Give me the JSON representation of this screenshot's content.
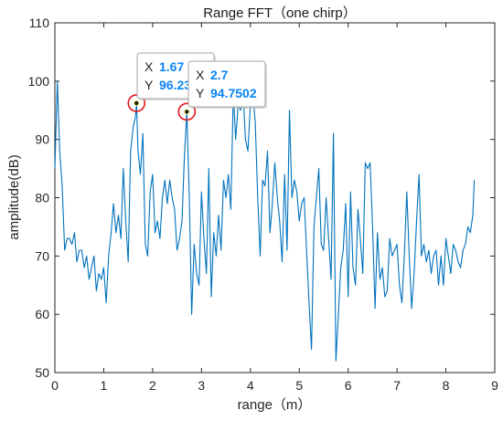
{
  "chart_data": {
    "type": "line",
    "title": "Range FFT（one chirp）",
    "xlabel": "range（m）",
    "ylabel": "amplitude(dB)",
    "xlim": [
      0,
      9
    ],
    "ylim": [
      50,
      110
    ],
    "xticks": [
      0,
      1,
      2,
      3,
      4,
      5,
      6,
      7,
      8,
      9
    ],
    "yticks": [
      50,
      60,
      70,
      80,
      90,
      100,
      110
    ],
    "grid": false,
    "line_color": "#0072BD",
    "series": [
      {
        "x": [
          0.0,
          0.05,
          0.1,
          0.15,
          0.2,
          0.25,
          0.3,
          0.35,
          0.4,
          0.45,
          0.5,
          0.55,
          0.6,
          0.65,
          0.7,
          0.75,
          0.8,
          0.85,
          0.9,
          0.95,
          1.0,
          1.05,
          1.1,
          1.15,
          1.2,
          1.25,
          1.3,
          1.35,
          1.4,
          1.45,
          1.5,
          1.55,
          1.6,
          1.65,
          1.67,
          1.7,
          1.75,
          1.8,
          1.85,
          1.9,
          1.95,
          2.0,
          2.05,
          2.1,
          2.15,
          2.2,
          2.25,
          2.3,
          2.35,
          2.4,
          2.45,
          2.5,
          2.55,
          2.6,
          2.65,
          2.7,
          2.75,
          2.8,
          2.85,
          2.9,
          2.95,
          3.0,
          3.05,
          3.1,
          3.15,
          3.2,
          3.25,
          3.3,
          3.35,
          3.4,
          3.45,
          3.5,
          3.55,
          3.6,
          3.65,
          3.7,
          3.75,
          3.8,
          3.85,
          3.9,
          3.95,
          4.0,
          4.05,
          4.1,
          4.15,
          4.2,
          4.25,
          4.3,
          4.35,
          4.4,
          4.45,
          4.5,
          4.55,
          4.6,
          4.65,
          4.7,
          4.75,
          4.8,
          4.85,
          4.9,
          4.95,
          5.0,
          5.05,
          5.1,
          5.15,
          5.2,
          5.25,
          5.3,
          5.35,
          5.4,
          5.45,
          5.5,
          5.55,
          5.6,
          5.65,
          5.7,
          5.75,
          5.8,
          5.85,
          5.9,
          5.95,
          6.0,
          6.05,
          6.1,
          6.15,
          6.2,
          6.25,
          6.3,
          6.35,
          6.4,
          6.45,
          6.5,
          6.55,
          6.6,
          6.65,
          6.7,
          6.75,
          6.8,
          6.85,
          6.9,
          6.95,
          7.0,
          7.05,
          7.1,
          7.15,
          7.2,
          7.25,
          7.3,
          7.35,
          7.4,
          7.45,
          7.5,
          7.55,
          7.6,
          7.65,
          7.7,
          7.75,
          7.8,
          7.85,
          7.9,
          7.95,
          8.0,
          8.05,
          8.1,
          8.15,
          8.2,
          8.25,
          8.3,
          8.35,
          8.4,
          8.45,
          8.5,
          8.55,
          8.58
        ],
        "y": [
          85,
          100,
          88,
          82,
          71,
          73,
          73,
          72,
          74,
          69,
          71,
          71,
          68,
          70,
          66,
          68,
          70,
          64,
          67,
          66,
          68,
          62,
          70,
          74,
          79,
          74,
          77,
          73,
          85,
          76,
          69,
          88,
          92,
          94,
          96.23,
          88,
          84,
          91,
          72,
          70,
          81,
          84,
          74,
          76,
          73,
          80,
          83,
          79,
          83,
          80,
          78,
          71,
          73,
          76,
          87,
          94.75,
          80,
          60,
          72,
          67,
          65,
          81,
          73,
          67,
          85,
          63,
          74,
          70,
          77,
          71,
          83,
          80,
          84,
          78,
          98,
          90,
          96,
          95,
          98,
          90,
          88,
          96,
          98,
          93,
          80,
          70,
          83,
          82,
          88,
          74,
          79,
          86,
          80,
          76,
          69,
          84,
          71,
          95,
          80,
          83,
          81,
          76,
          79,
          80,
          71,
          62,
          54,
          75,
          80,
          85,
          72,
          71,
          80,
          73,
          66,
          91,
          52,
          60,
          68,
          71,
          79,
          63,
          81,
          68,
          65,
          78,
          73,
          67,
          86,
          85,
          86,
          75,
          61,
          74,
          66,
          68,
          63,
          64,
          73,
          70,
          71,
          72,
          65,
          62,
          70,
          81,
          70,
          61,
          67,
          76,
          84,
          70,
          72,
          69,
          71,
          67,
          70,
          71,
          65,
          70,
          65,
          73,
          70,
          67,
          72,
          71,
          69,
          68,
          71,
          72,
          75,
          74,
          77,
          83
        ]
      }
    ],
    "datatips": [
      {
        "x": 1.67,
        "y": 96.23,
        "x_label": "X",
        "y_label": "Y",
        "x_text": "1.67",
        "y_text": "96.23"
      },
      {
        "x": 2.7,
        "y": 94.75,
        "x_label": "X",
        "y_label": "Y",
        "x_text": "2.7",
        "y_text": "94.7502"
      }
    ]
  }
}
